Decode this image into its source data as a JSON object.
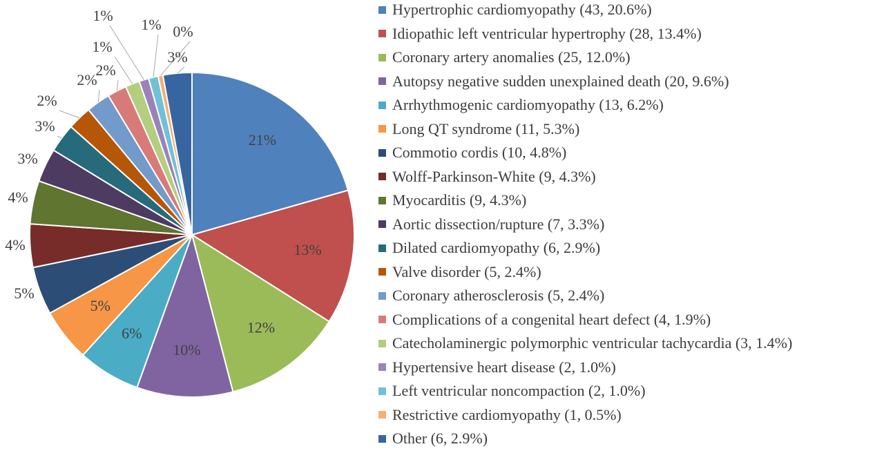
{
  "chart_data": {
    "type": "pie",
    "start_angle_deg": 0,
    "direction": "clockwise",
    "legend_position": "right",
    "slices": [
      {
        "name": "Hypertrophic cardiomyopathy",
        "count": 43,
        "percent": 20.6,
        "label": "21%",
        "legend": "Hypertrophic cardiomyopathy (43, 20.6%)",
        "color": "#4F81BD"
      },
      {
        "name": "Idiopathic left ventricular hypertrophy",
        "count": 28,
        "percent": 13.4,
        "label": "13%",
        "legend": "Idiopathic left ventricular hypertrophy (28, 13.4%)",
        "color": "#C0504D"
      },
      {
        "name": "Coronary artery anomalies",
        "count": 25,
        "percent": 12.0,
        "label": "12%",
        "legend": "Coronary artery anomalies (25, 12.0%)",
        "color": "#9BBB59"
      },
      {
        "name": "Autopsy negative sudden unexplained death",
        "count": 20,
        "percent": 9.6,
        "label": "10%",
        "legend": "Autopsy negative sudden unexplained death (20, 9.6%)",
        "color": "#8064A2"
      },
      {
        "name": "Arrhythmogenic cardiomyopathy",
        "count": 13,
        "percent": 6.2,
        "label": "6%",
        "legend": "Arrhythmogenic cardiomyopathy (13, 6.2%)",
        "color": "#4BACC6"
      },
      {
        "name": "Long QT syndrome",
        "count": 11,
        "percent": 5.3,
        "label": "5%",
        "legend": "Long QT syndrome (11, 5.3%)",
        "color": "#F79646"
      },
      {
        "name": "Commotio cordis",
        "count": 10,
        "percent": 4.8,
        "label": "5%",
        "legend": "Commotio cordis (10, 4.8%)",
        "color": "#2C4D75"
      },
      {
        "name": "Wolff-Parkinson-White",
        "count": 9,
        "percent": 4.3,
        "label": "4%",
        "legend": "Wolff-Parkinson-White (9, 4.3%)",
        "color": "#772C2A"
      },
      {
        "name": "Myocarditis",
        "count": 9,
        "percent": 4.3,
        "label": "4%",
        "legend": "Myocarditis (9, 4.3%)",
        "color": "#5F7530"
      },
      {
        "name": "Aortic dissection/rupture",
        "count": 7,
        "percent": 3.3,
        "label": "3%",
        "legend": "Aortic dissection/rupture (7, 3.3%)",
        "color": "#4D3B62"
      },
      {
        "name": "Dilated cardiomyopathy",
        "count": 6,
        "percent": 2.9,
        "label": "3%",
        "legend": "Dilated cardiomyopathy (6, 2.9%)",
        "color": "#276A7C"
      },
      {
        "name": "Valve disorder",
        "count": 5,
        "percent": 2.4,
        "label": "2%",
        "legend": "Valve disorder (5, 2.4%)",
        "color": "#B65708"
      },
      {
        "name": "Coronary atherosclerosis",
        "count": 5,
        "percent": 2.4,
        "label": "2%",
        "legend": "Coronary atherosclerosis (5, 2.4%)",
        "color": "#729ACA"
      },
      {
        "name": "Complications of a congenital heart defect",
        "count": 4,
        "percent": 1.9,
        "label": "2%",
        "legend": "Complications of a congenital heart defect (4, 1.9%)",
        "color": "#D77B79"
      },
      {
        "name": "Catecholaminergic polymorphic ventricular tachycardia",
        "count": 3,
        "percent": 1.4,
        "label": "1%",
        "legend": "Catecholaminergic polymorphic ventricular tachycardia (3, 1.4%)",
        "color": "#B2CE7E"
      },
      {
        "name": "Hypertensive heart disease",
        "count": 2,
        "percent": 1.0,
        "label": "1%",
        "legend": "Hypertensive heart disease (2, 1.0%)",
        "color": "#9B83BA"
      },
      {
        "name": "Left ventricular noncompaction",
        "count": 2,
        "percent": 1.0,
        "label": "1%",
        "legend": "Left ventricular noncompaction (2, 1.0%)",
        "color": "#6FC1D8"
      },
      {
        "name": "Restrictive cardiomyopathy",
        "count": 1,
        "percent": 0.5,
        "label": "0%",
        "legend": "Restrictive cardiomyopathy (1, 0.5%)",
        "color": "#F9AD71"
      },
      {
        "name": "Other",
        "count": 6,
        "percent": 2.9,
        "label": "3%",
        "legend": "Other (6, 2.9%)",
        "color": "#3765A0"
      }
    ]
  }
}
